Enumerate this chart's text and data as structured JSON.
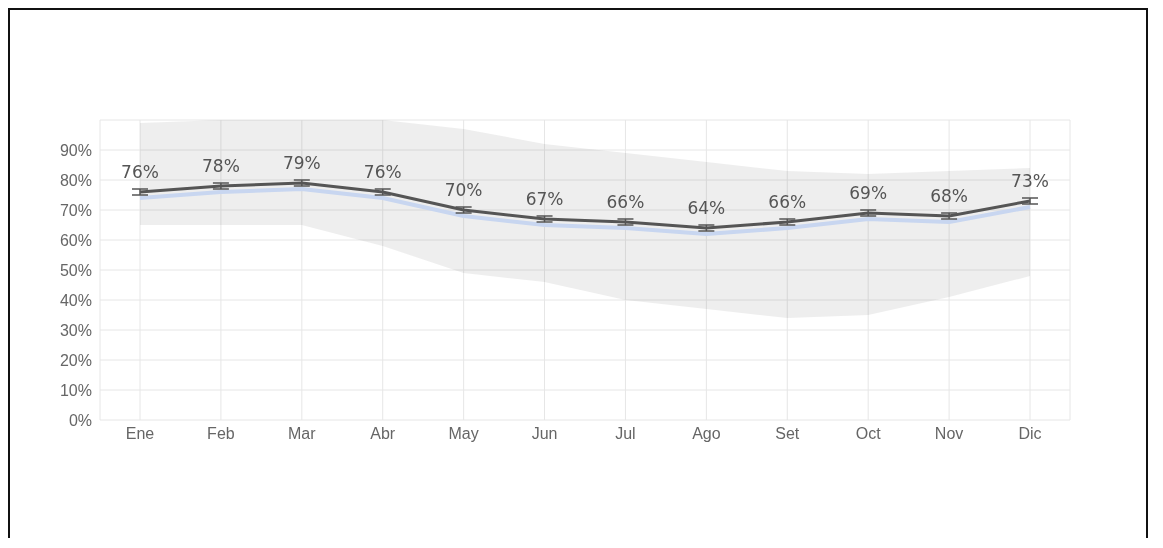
{
  "chart_data": {
    "type": "line",
    "categories": [
      "Ene",
      "Feb",
      "Mar",
      "Abr",
      "May",
      "Jun",
      "Jul",
      "Ago",
      "Set",
      "Oct",
      "Nov",
      "Dic"
    ],
    "series": [
      {
        "color": "#c8d6f0",
        "values": [
          74,
          76,
          77,
          74,
          68,
          65,
          64,
          62,
          64,
          67,
          66,
          71
        ]
      },
      {
        "color": "#555555",
        "lower": [
          65,
          65,
          65,
          58,
          49,
          46,
          40,
          37,
          34,
          35,
          41,
          48
        ],
        "upper": [
          99,
          100,
          100,
          100,
          97,
          92,
          89,
          86,
          83,
          82,
          83,
          84
        ],
        "values": [
          76,
          78,
          79,
          76,
          70,
          67,
          66,
          64,
          66,
          69,
          68,
          73
        ],
        "errors": [
          1,
          1,
          1,
          1,
          1,
          1,
          1,
          1,
          1,
          1,
          1,
          1
        ],
        "value_labels": [
          "76%",
          "78%",
          "79%",
          "76%",
          "70%",
          "67%",
          "66%",
          "64%",
          "66%",
          "69%",
          "68%",
          "73%"
        ]
      }
    ],
    "ylim": [
      0,
      100
    ],
    "yticks": [
      {
        "value": 0,
        "label": "0%"
      },
      {
        "value": 10,
        "label": "10%"
      },
      {
        "value": 20,
        "label": "20%"
      },
      {
        "value": 30,
        "label": "30%"
      },
      {
        "value": 40,
        "label": "40%"
      },
      {
        "value": 50,
        "label": "50%"
      },
      {
        "value": 60,
        "label": "60%"
      },
      {
        "value": 70,
        "label": "70%"
      },
      {
        "value": 80,
        "label": "80%"
      },
      {
        "value": 90,
        "label": "90%"
      }
    ],
    "grid": true,
    "legend": false,
    "marker": "none",
    "line_style": "solid"
  }
}
